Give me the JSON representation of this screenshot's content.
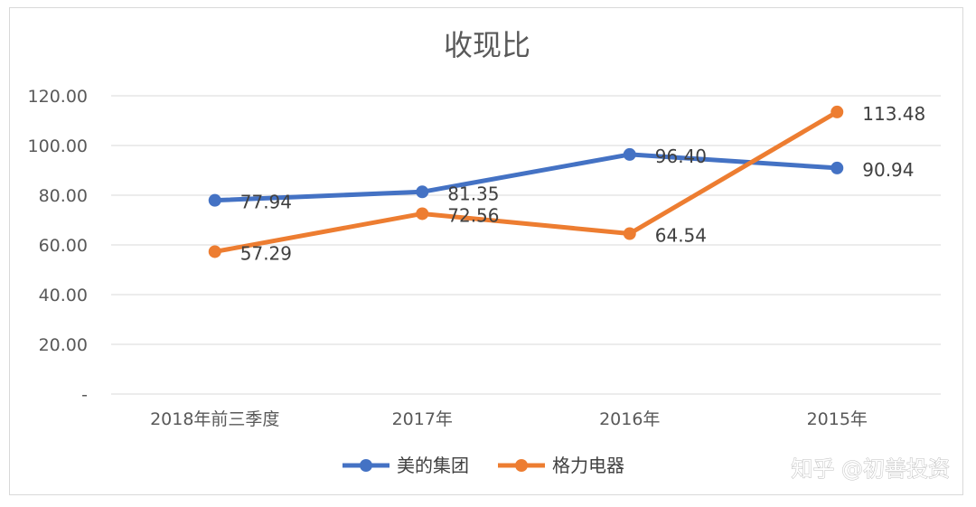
{
  "chart_data": {
    "type": "line",
    "title": "收现比",
    "categories": [
      "2018年前三季度",
      "2017年",
      "2016年",
      "2015年"
    ],
    "ylim": [
      0,
      120
    ],
    "y_ticks": [
      "-",
      "20.00",
      "40.00",
      "60.00",
      "80.00",
      "100.00",
      "120.00"
    ],
    "grid": true,
    "legend_position": "bottom",
    "series": [
      {
        "name": "美的集团",
        "color": "#4472c4",
        "values": [
          77.94,
          81.35,
          96.4,
          90.94
        ],
        "labels": [
          "77.94",
          "81.35",
          "96.40",
          "90.94"
        ]
      },
      {
        "name": "格力电器",
        "color": "#ed7d31",
        "values": [
          57.29,
          72.56,
          64.54,
          113.48
        ],
        "labels": [
          "57.29",
          "72.56",
          "64.54",
          "113.48"
        ]
      }
    ]
  },
  "watermark": "知乎 @初善投资"
}
